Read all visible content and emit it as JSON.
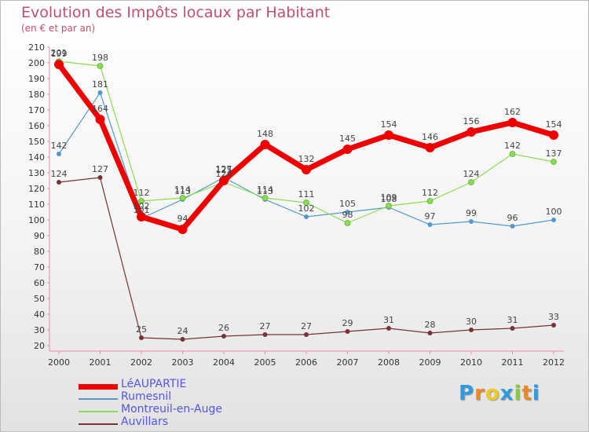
{
  "chart_data": {
    "type": "line",
    "title": "Evolution des Impôts locaux par Habitant",
    "subtitle": "(en € et par an)",
    "x": [
      "2000",
      "2001",
      "2002",
      "2003",
      "2004",
      "2005",
      "2006",
      "2007",
      "2008",
      "2009",
      "2010",
      "2011",
      "2012"
    ],
    "yticks": [
      "20",
      "30",
      "40",
      "50",
      "60",
      "70",
      "80",
      "90",
      "100",
      "110",
      "120",
      "130",
      "140",
      "150",
      "160",
      "170",
      "180",
      "190",
      "200",
      "210"
    ],
    "ylim": [
      20,
      210
    ],
    "grid": false,
    "legend_position": "bottom-left",
    "series": [
      {
        "name": "LéAUPARTIE",
        "color": "#ee0000",
        "values": [
          199,
          164,
          102,
          94,
          125,
          148,
          132,
          145,
          154,
          146,
          156,
          162,
          154
        ],
        "labels": [
          "199",
          "164",
          "102",
          "94",
          "125",
          "148",
          "132",
          "145",
          "154",
          "146",
          "156",
          "162",
          "154"
        ]
      },
      {
        "name": "Rumesnil",
        "color": "#5599cc",
        "values": [
          142,
          181,
          101,
          113,
          127,
          113,
          102,
          105,
          108,
          97,
          99,
          96,
          100
        ],
        "labels": [
          "142",
          "181",
          "101",
          "113",
          "127",
          "113",
          "102",
          "105",
          "108",
          "97",
          "99",
          "96",
          "100"
        ]
      },
      {
        "name": "Montreuil-en-Auge",
        "color": "#88dd55",
        "values": [
          201,
          198,
          112,
          114,
          124,
          114,
          111,
          98,
          109,
          112,
          124,
          142,
          137
        ],
        "labels": [
          "201",
          "198",
          "112",
          "114",
          "124",
          "114",
          "111",
          "98",
          "109",
          "112",
          "124",
          "142",
          "137"
        ]
      },
      {
        "name": "Auvillars",
        "color": "#773333",
        "values": [
          124,
          127,
          25,
          24,
          26,
          27,
          27,
          29,
          31,
          28,
          30,
          31,
          33
        ],
        "labels": [
          "124",
          "127",
          "25",
          "24",
          "26",
          "27",
          "27",
          "29",
          "31",
          "28",
          "30",
          "31",
          "33"
        ]
      }
    ]
  },
  "logo": {
    "letters": [
      "P",
      "r",
      "o",
      "x",
      "i",
      "t",
      "i"
    ],
    "colors": [
      "#3399dd",
      "#ee8822",
      "#eecc22",
      "#3399dd",
      "#88cc33",
      "#ee8822",
      "#3399dd"
    ]
  }
}
